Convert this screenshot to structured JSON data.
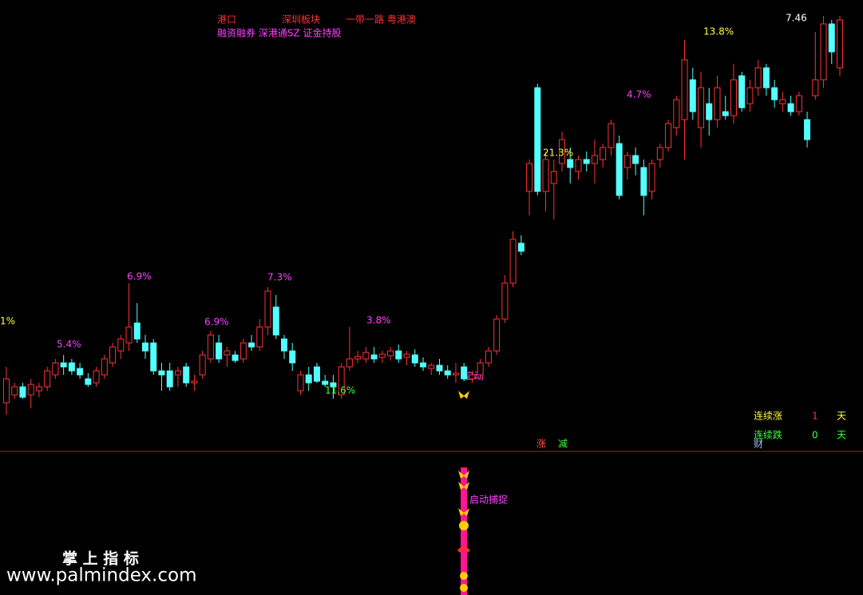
{
  "chart_data": {
    "type": "candlestick",
    "tags": [
      "港口",
      "深圳板块",
      "一带一路 粤港澳",
      "融资融券 深港通SZ 证金持股"
    ],
    "annotations": [
      "1%",
      "5.4%",
      "6.9%",
      "7.3%",
      "6.9%",
      "3.8%",
      "11.6%",
      "21.3%",
      "4.7%",
      "13.8%",
      "7.46"
    ],
    "up_color": "#ff3232",
    "down_color": "#54ffff",
    "ylim": [
      2.06,
      7.66
    ],
    "open": [
      2.61,
      2.71,
      2.81,
      2.71,
      2.76,
      2.81,
      2.96,
      3.11,
      3.11,
      3.04,
      2.91,
      2.86,
      2.96,
      3.11,
      3.26,
      3.36,
      3.61,
      3.36,
      3.36,
      3.01,
      3.01,
      2.96,
      3.06,
      2.86,
      2.96,
      3.16,
      3.36,
      3.21,
      3.21,
      3.16,
      3.36,
      3.31,
      3.56,
      3.81,
      3.41,
      3.26,
      2.76,
      2.96,
      3.06,
      2.88,
      2.86,
      2.71,
      3.06,
      3.16,
      3.16,
      3.21,
      3.18,
      3.2,
      3.26,
      3.18,
      3.21,
      3.11,
      3.04,
      3.08,
      3.01,
      2.96,
      3.06,
      2.91,
      2.96,
      3.11,
      3.26,
      3.66,
      4.11,
      4.61,
      5.26,
      6.56,
      5.26,
      5.36,
      5.61,
      5.66,
      5.51,
      5.66,
      5.61,
      5.66,
      5.81,
      5.86,
      5.56,
      5.71,
      5.56,
      5.26,
      5.66,
      5.81,
      6.06,
      6.16,
      6.66,
      6.06,
      6.36,
      6.16,
      6.26,
      6.21,
      6.71,
      6.36,
      6.56,
      6.81,
      6.56,
      6.36,
      6.36,
      6.26,
      6.16,
      6.46,
      6.66,
      7.36,
      6.81
    ],
    "high": [
      3.06,
      2.86,
      2.86,
      2.91,
      2.86,
      3.06,
      3.16,
      3.21,
      3.16,
      3.11,
      2.98,
      3.06,
      3.21,
      3.36,
      3.46,
      4.11,
      3.86,
      3.46,
      3.41,
      3.11,
      3.11,
      3.06,
      3.11,
      2.96,
      3.26,
      3.51,
      3.46,
      3.31,
      3.26,
      3.41,
      3.46,
      3.66,
      4.06,
      3.96,
      3.46,
      3.36,
      3.01,
      3.06,
      3.11,
      2.96,
      2.96,
      3.11,
      3.56,
      3.26,
      3.31,
      3.31,
      3.26,
      3.31,
      3.34,
      3.26,
      3.28,
      3.18,
      3.11,
      3.16,
      3.08,
      3.11,
      3.11,
      3.01,
      3.16,
      3.31,
      3.71,
      4.21,
      4.76,
      4.71,
      5.66,
      6.61,
      5.76,
      5.66,
      6.01,
      5.81,
      5.71,
      5.76,
      5.91,
      5.86,
      6.16,
      5.96,
      5.76,
      5.81,
      5.66,
      5.66,
      5.86,
      6.16,
      6.46,
      7.16,
      6.81,
      6.76,
      6.56,
      6.71,
      6.46,
      6.86,
      6.76,
      6.66,
      6.91,
      6.86,
      6.66,
      6.51,
      6.46,
      6.51,
      6.26,
      7.26,
      7.46,
      7.41,
      7.46
    ],
    "low": [
      2.46,
      2.66,
      2.66,
      2.54,
      2.68,
      2.76,
      2.91,
      2.96,
      2.96,
      2.91,
      2.81,
      2.81,
      2.91,
      3.06,
      3.16,
      3.26,
      3.36,
      3.16,
      2.96,
      2.76,
      2.76,
      2.81,
      2.81,
      2.76,
      2.91,
      3.11,
      3.11,
      3.06,
      3.11,
      3.11,
      3.26,
      3.26,
      3.46,
      3.41,
      3.16,
      3.01,
      2.71,
      2.76,
      2.86,
      2.81,
      2.66,
      2.66,
      3.01,
      3.11,
      3.11,
      3.11,
      3.11,
      3.14,
      3.11,
      3.08,
      3.06,
      3.01,
      2.96,
      2.96,
      2.91,
      2.86,
      2.88,
      2.86,
      2.91,
      3.06,
      3.21,
      3.61,
      4.06,
      4.46,
      4.96,
      5.21,
      5.01,
      4.91,
      5.51,
      5.36,
      5.41,
      5.51,
      5.36,
      5.56,
      5.71,
      5.16,
      5.41,
      5.46,
      4.96,
      5.16,
      5.56,
      5.76,
      5.96,
      5.66,
      6.16,
      5.81,
      5.96,
      6.06,
      6.16,
      6.11,
      6.26,
      6.26,
      6.46,
      6.46,
      6.31,
      6.26,
      6.21,
      6.21,
      5.81,
      6.41,
      6.56,
      6.86,
      6.71
    ],
    "close": [
      2.91,
      2.81,
      2.68,
      2.84,
      2.81,
      3.01,
      3.11,
      3.06,
      3.01,
      2.96,
      2.84,
      3.01,
      3.16,
      3.31,
      3.41,
      3.56,
      3.41,
      3.26,
      3.01,
      2.96,
      2.81,
      3.01,
      2.86,
      2.88,
      3.21,
      3.46,
      3.16,
      3.26,
      3.14,
      3.36,
      3.31,
      3.56,
      4.01,
      3.46,
      3.26,
      3.11,
      2.96,
      2.86,
      2.88,
      2.84,
      2.81,
      3.06,
      3.16,
      3.19,
      3.24,
      3.16,
      3.22,
      3.26,
      3.16,
      3.22,
      3.11,
      3.06,
      3.08,
      3.01,
      2.96,
      2.98,
      2.91,
      2.96,
      3.11,
      3.26,
      3.66,
      4.11,
      4.66,
      4.51,
      5.61,
      5.26,
      5.66,
      5.51,
      5.91,
      5.56,
      5.66,
      5.61,
      5.71,
      5.81,
      6.11,
      5.21,
      5.71,
      5.61,
      5.21,
      5.61,
      5.81,
      6.11,
      6.41,
      6.91,
      6.26,
      6.56,
      6.16,
      6.56,
      6.21,
      6.66,
      6.31,
      6.56,
      6.81,
      6.56,
      6.41,
      6.41,
      6.26,
      6.46,
      5.91,
      6.66,
      7.36,
      7.01,
      7.41
    ]
  },
  "stats": {
    "rise_label": "连续涨",
    "rise_days": 1,
    "fall_label": "连续跌",
    "fall_days": 0,
    "unit": "天",
    "cai": "财"
  },
  "markers": {
    "zhang": "涨",
    "jian": "减",
    "start": "启动",
    "capture": "启动捕捉"
  },
  "watermark": {
    "title": "掌 上 指 标",
    "url": "www.palmindex.com"
  }
}
